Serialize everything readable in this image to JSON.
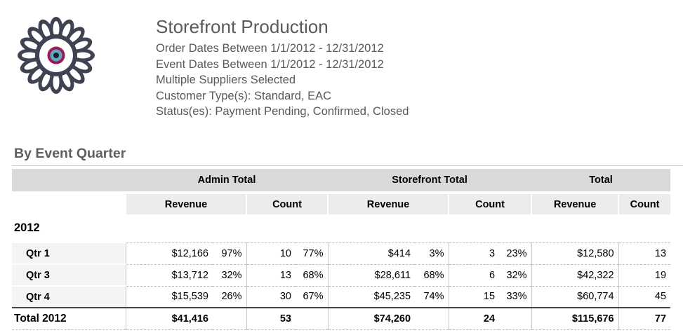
{
  "header": {
    "title": "Storefront Production",
    "lines": [
      "Order Dates Between 1/1/2012 - 12/31/2012",
      "Event Dates Between 1/1/2012 - 12/31/2012",
      "Multiple Suppliers Selected",
      "Customer Type(s): Standard, EAC",
      "Status(es): Payment Pending, Confirmed, Closed"
    ]
  },
  "logo": {
    "icon": "flower-eye-logo",
    "colors": {
      "petal": "#3d4450",
      "ring": "#9a1c4d",
      "iris": "#5da9c9"
    }
  },
  "section": {
    "title": "By Event Quarter"
  },
  "table": {
    "groups": {
      "admin": "Admin Total",
      "storefront": "Storefront Total",
      "total": "Total"
    },
    "subheaders": {
      "revenue": "Revenue",
      "count": "Count"
    },
    "year": "2012",
    "rows": [
      {
        "label": "Qtr 1",
        "admin_rev": "$12,166",
        "admin_rev_pct": "97%",
        "admin_cnt": "10",
        "admin_cnt_pct": "77%",
        "sf_rev": "$414",
        "sf_rev_pct": "3%",
        "sf_cnt": "3",
        "sf_cnt_pct": "23%",
        "tot_rev": "$12,580",
        "tot_cnt": "13"
      },
      {
        "label": "Qtr 3",
        "admin_rev": "$13,712",
        "admin_rev_pct": "32%",
        "admin_cnt": "13",
        "admin_cnt_pct": "68%",
        "sf_rev": "$28,611",
        "sf_rev_pct": "68%",
        "sf_cnt": "6",
        "sf_cnt_pct": "32%",
        "tot_rev": "$42,322",
        "tot_cnt": "19"
      },
      {
        "label": "Qtr 4",
        "admin_rev": "$15,539",
        "admin_rev_pct": "26%",
        "admin_cnt": "30",
        "admin_cnt_pct": "67%",
        "sf_rev": "$45,235",
        "sf_rev_pct": "74%",
        "sf_cnt": "15",
        "sf_cnt_pct": "33%",
        "tot_rev": "$60,774",
        "tot_cnt": "45"
      }
    ],
    "total": {
      "label": "Total 2012",
      "admin_rev": "$41,416",
      "admin_cnt": "53",
      "sf_rev": "$74,260",
      "sf_cnt": "24",
      "tot_rev": "$115,676",
      "tot_cnt": "77"
    }
  }
}
